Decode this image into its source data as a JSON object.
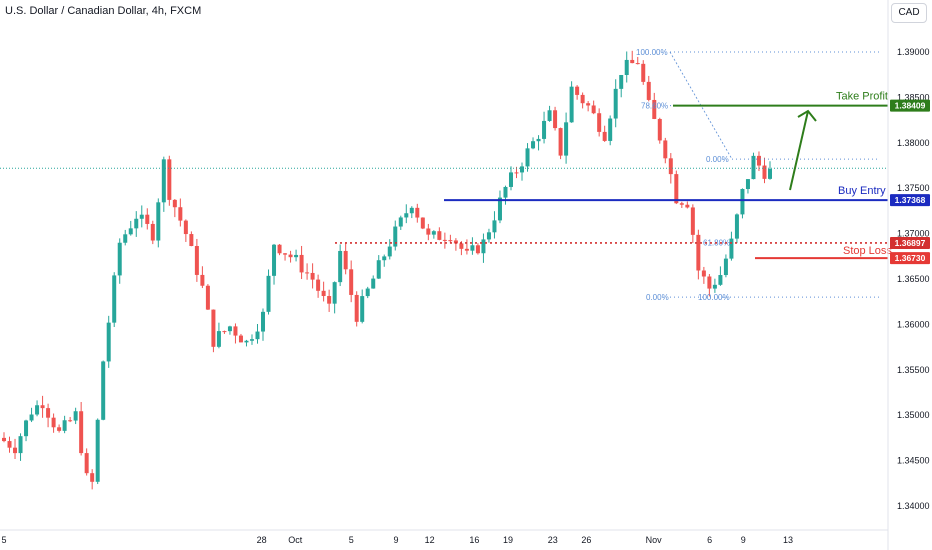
{
  "title": "U.S. Dollar / Canadian Dollar, 4h, FXCM",
  "currency_button": "CAD",
  "colors": {
    "up": "#26a69a",
    "down": "#ef5350",
    "fib": "#5d8fd6",
    "take_profit": "#2e7d1b",
    "buy_entry": "#1b2bc0",
    "stop_loss": "#e53935",
    "stop_dotted": "#d32f2f",
    "arrow": "#2e7d1b"
  },
  "chart_data": {
    "type": "candlestick",
    "symbol": "USDCAD",
    "timeframe": "4h",
    "y_ticks": [
      1.39,
      1.385,
      1.38,
      1.375,
      1.37,
      1.365,
      1.36,
      1.355,
      1.35,
      1.345,
      1.34
    ],
    "y_tick_labels": [
      "1.39000",
      "1.38500",
      "1.38000",
      "1.37500",
      "1.37000",
      "1.36500",
      "1.36000",
      "1.35500",
      "1.35000",
      "1.34500",
      "1.34000"
    ],
    "x_ticks": [
      {
        "label": "5",
        "day": 0
      },
      {
        "label": "28",
        "day": 23
      },
      {
        "label": "Oct",
        "day": 26
      },
      {
        "label": "5",
        "day": 31
      },
      {
        "label": "9",
        "day": 35
      },
      {
        "label": "12",
        "day": 38
      },
      {
        "label": "16",
        "day": 42
      },
      {
        "label": "19",
        "day": 45
      },
      {
        "label": "23",
        "day": 49
      },
      {
        "label": "26",
        "day": 52
      },
      {
        "label": "Nov",
        "day": 58
      },
      {
        "label": "6",
        "day": 63
      },
      {
        "label": "9",
        "day": 66
      },
      {
        "label": "13",
        "day": 70
      }
    ],
    "anchors": [
      [
        0,
        1.3475
      ],
      [
        3,
        1.3465
      ],
      [
        6,
        1.3505
      ],
      [
        8,
        1.3515
      ],
      [
        11,
        1.348
      ],
      [
        14,
        1.35
      ],
      [
        16,
        1.343
      ],
      [
        17,
        1.3425
      ],
      [
        19,
        1.356
      ],
      [
        22,
        1.369
      ],
      [
        25,
        1.372
      ],
      [
        28,
        1.37
      ],
      [
        30,
        1.3778
      ],
      [
        31,
        1.3745
      ],
      [
        34,
        1.37
      ],
      [
        37,
        1.364
      ],
      [
        39,
        1.3582
      ],
      [
        42,
        1.3598
      ],
      [
        45,
        1.358
      ],
      [
        48,
        1.361
      ],
      [
        50,
        1.369
      ],
      [
        54,
        1.367
      ],
      [
        57,
        1.365
      ],
      [
        60,
        1.3615
      ],
      [
        62,
        1.368
      ],
      [
        65,
        1.361
      ],
      [
        68,
        1.365
      ],
      [
        71,
        1.369
      ],
      [
        75,
        1.3735
      ],
      [
        78,
        1.3695
      ],
      [
        82,
        1.37
      ],
      [
        85,
        1.3675
      ],
      [
        88,
        1.369
      ],
      [
        92,
        1.375
      ],
      [
        96,
        1.379
      ],
      [
        100,
        1.383
      ],
      [
        102,
        1.379
      ],
      [
        104,
        1.386
      ],
      [
        107,
        1.384
      ],
      [
        110,
        1.381
      ],
      [
        113,
        1.388
      ],
      [
        116,
        1.389
      ],
      [
        118,
        1.384
      ],
      [
        121,
        1.379
      ],
      [
        123,
        1.374
      ],
      [
        125,
        1.3735
      ],
      [
        126,
        1.37
      ],
      [
        127,
        1.366
      ],
      [
        129,
        1.364
      ],
      [
        131,
        1.3655
      ],
      [
        133,
        1.369
      ],
      [
        135,
        1.3745
      ],
      [
        137,
        1.3782
      ],
      [
        139,
        1.3768
      ]
    ],
    "fib_top_retracement": [
      {
        "label": "100.00%",
        "price": 1.39
      },
      {
        "label": "78.60%",
        "price": 1.3841
      },
      {
        "label": "0.00%",
        "price": 1.3782
      }
    ],
    "fib_bottom_extension": [
      {
        "label": "61.80%",
        "price": 1.369
      },
      {
        "label": "0.00%",
        "price": 1.363
      },
      {
        "label": "100.00%",
        "price": 1.363
      }
    ],
    "levels": [
      {
        "name": "Take Profit",
        "price": 1.38409,
        "price_label": "1.38409",
        "color": "#2e7d1b"
      },
      {
        "name": "Buy Entry",
        "price": 1.37368,
        "price_label": "1.37368",
        "color": "#1b2bc0"
      },
      {
        "name": "",
        "price": 1.36897,
        "price_label": "1.36897",
        "color": "#d32f2f"
      },
      {
        "name": "Stop Loss",
        "price": 1.3673,
        "price_label": "1.36730",
        "color": "#e53935"
      }
    ],
    "current_price": 1.3772,
    "arrow": {
      "from": [
        1.3748
      ],
      "to": [
        1.3835
      ]
    },
    "ylim": [
      1.3385,
      1.3915
    ]
  }
}
